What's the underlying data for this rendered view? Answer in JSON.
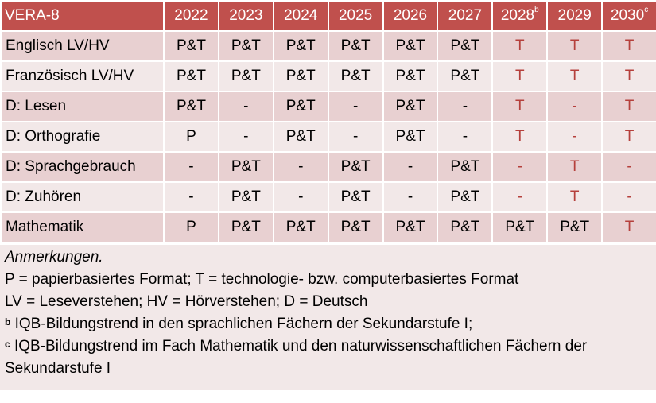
{
  "table": {
    "header": {
      "title": "VERA-8",
      "years": [
        {
          "year": "2022",
          "note": ""
        },
        {
          "year": "2023",
          "note": ""
        },
        {
          "year": "2024",
          "note": ""
        },
        {
          "year": "2025",
          "note": ""
        },
        {
          "year": "2026",
          "note": ""
        },
        {
          "year": "2027",
          "note": ""
        },
        {
          "year": "2028",
          "note": "b"
        },
        {
          "year": "2029",
          "note": ""
        },
        {
          "year": "2030",
          "note": "c"
        }
      ]
    },
    "rows": [
      {
        "label": "Englisch LV/HV",
        "cells": [
          "P&T",
          "P&T",
          "P&T",
          "P&T",
          "P&T",
          "P&T",
          "T",
          "T",
          "T"
        ]
      },
      {
        "label": "Französisch LV/HV",
        "cells": [
          "P&T",
          "P&T",
          "P&T",
          "P&T",
          "P&T",
          "P&T",
          "T",
          "T",
          "T"
        ]
      },
      {
        "label": "D: Lesen",
        "cells": [
          "P&T",
          "-",
          "P&T",
          "-",
          "P&T",
          "-",
          "T",
          "-",
          "T"
        ]
      },
      {
        "label": "D: Orthografie",
        "cells": [
          "P",
          "-",
          "P&T",
          "-",
          "P&T",
          "-",
          "T",
          "-",
          "T"
        ]
      },
      {
        "label": "D: Sprachgebrauch",
        "cells": [
          "-",
          "P&T",
          "-",
          "P&T",
          "-",
          "P&T",
          "-",
          "T",
          "-"
        ]
      },
      {
        "label": "D: Zuhören",
        "cells": [
          "-",
          "P&T",
          "-",
          "P&T",
          "-",
          "P&T",
          "-",
          "T",
          "-"
        ]
      },
      {
        "label": "Mathematik",
        "cells": [
          "P",
          "P&T",
          "P&T",
          "P&T",
          "P&T",
          "P&T",
          "P&T",
          "P&T",
          "T"
        ]
      }
    ],
    "future_year_columns_from_index": 6,
    "colors": {
      "header_bg": "#c0504d",
      "row_dark": "#e8d0d1",
      "row_light": "#f2e8e8",
      "future_text": "#b5403c"
    }
  },
  "notes": {
    "title": "Anmerkungen.",
    "line1": "P = papierbasiertes Format; T = technologie- bzw. computerbasiertes Format",
    "line2": "LV = Leseverstehen; HV = Hörverstehen; D = Deutsch",
    "footnote_b_marker": "b",
    "footnote_b": " IQB-Bildungstrend in den sprachlichen Fächern der Sekundarstufe I;",
    "footnote_c_marker": "c",
    "footnote_c": " IQB-Bildungstrend im Fach Mathematik und den naturwissenschaftlichen Fächern der Sekundarstufe I"
  }
}
